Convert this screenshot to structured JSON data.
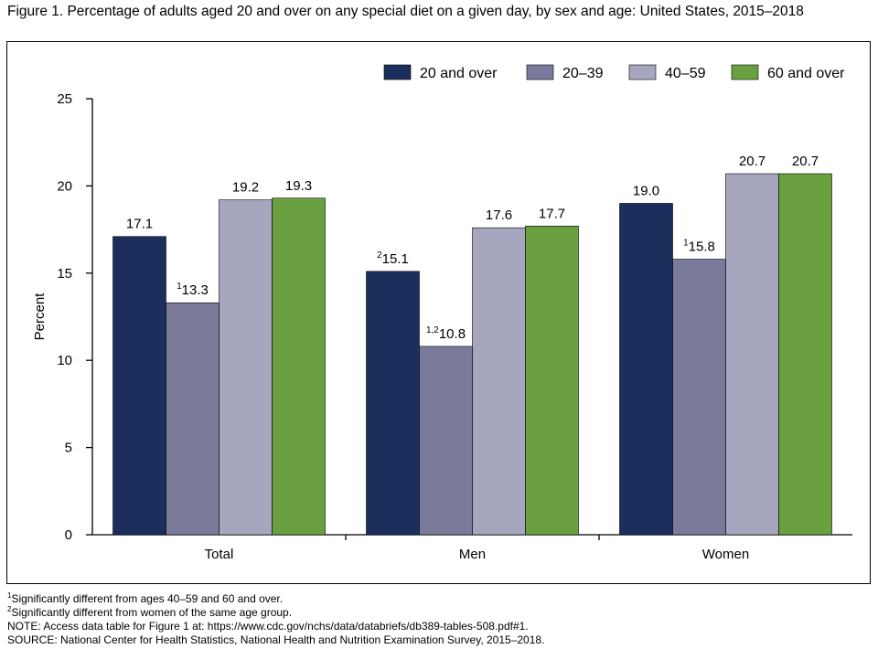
{
  "title": "Figure 1. Percentage of adults aged 20 and over on any special diet on a given day, by sex and age: United States, 2015–2018",
  "colors": {
    "20 and over": "#1c2e5b",
    "20–39": "#7a7b9b",
    "40–59": "#a6a6bf",
    "60 and over": "#6aa040"
  },
  "chart_data": {
    "type": "bar",
    "title": "",
    "xlabel": "",
    "ylabel": "Percent",
    "ylim": [
      0,
      25
    ],
    "yticks": [
      0,
      5,
      10,
      15,
      20,
      25
    ],
    "categories": [
      "Total",
      "Men",
      "Women"
    ],
    "legend_position": "top-right",
    "grid": false,
    "series": [
      {
        "name": "20 and over",
        "values": [
          17.1,
          15.1,
          19.0
        ],
        "labels": [
          "17.1",
          "15.1",
          "19.0"
        ],
        "superscripts": [
          "",
          "2",
          ""
        ]
      },
      {
        "name": "20–39",
        "values": [
          13.3,
          10.8,
          15.8
        ],
        "labels": [
          "13.3",
          "10.8",
          "15.8"
        ],
        "superscripts": [
          "1",
          "1,2",
          "1"
        ]
      },
      {
        "name": "40–59",
        "values": [
          19.2,
          17.6,
          20.7
        ],
        "labels": [
          "19.2",
          "17.6",
          "20.7"
        ],
        "superscripts": [
          "",
          "",
          ""
        ]
      },
      {
        "name": "60 and over",
        "values": [
          19.3,
          17.7,
          20.7
        ],
        "labels": [
          "19.3",
          "17.7",
          "20.7"
        ],
        "superscripts": [
          "",
          "",
          ""
        ]
      }
    ]
  },
  "footnotes": {
    "note1_marker": "1",
    "note1": "Significantly different from ages 40–59 and 60 and over.",
    "note2_marker": "2",
    "note2": "Significantly different from women of the same age group.",
    "note": "NOTE: Access data table for Figure 1 at: https://www.cdc.gov/nchs/data/databriefs/db389-tables-508.pdf#1.",
    "source": "SOURCE: National Center for Health Statistics, National Health and Nutrition Examination Survey, 2015–2018."
  }
}
